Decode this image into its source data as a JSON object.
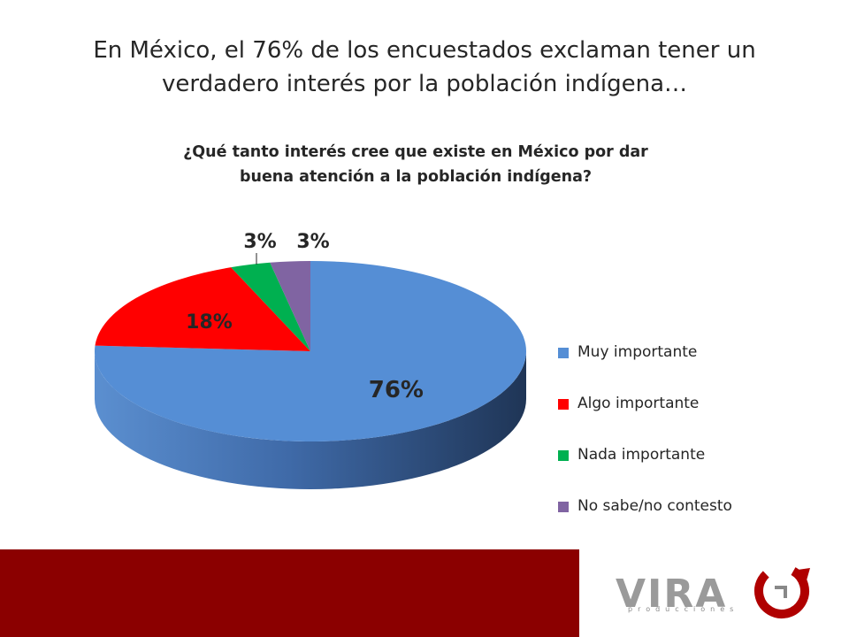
{
  "slide": {
    "title": "En México, el 76% de los encuestados exclaman tener un verdadero interés por la población indígena…"
  },
  "chart_data": {
    "type": "pie",
    "title": "¿Qué tanto interés cree que existe en México por dar buena atención a la población indígena?",
    "categories": [
      "Muy importante",
      "Algo importante",
      "Nada importante",
      "No sabe/no contesto"
    ],
    "values": [
      76,
      18,
      3,
      3
    ],
    "labels": [
      "76%",
      "18%",
      "3%",
      "3%"
    ],
    "colors": [
      "#558ed5",
      "#ff0000",
      "#00b050",
      "#8064a2"
    ],
    "legend_position": "right",
    "style": "3d"
  },
  "brand": {
    "logo_text": "VIRA",
    "logo_subtext": "producciones",
    "footer_color": "#8b0000"
  }
}
